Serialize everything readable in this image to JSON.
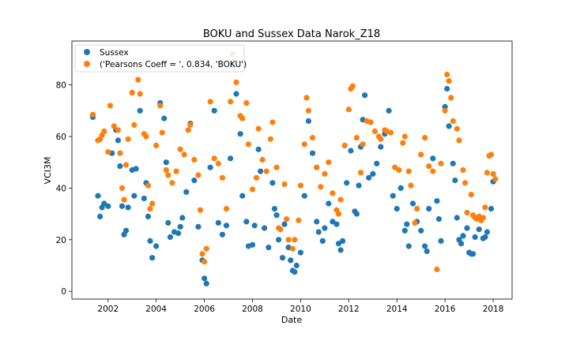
{
  "chart_data": {
    "type": "scatter",
    "title": "BOKU and Sussex Data Narok_Z18",
    "xlabel": "Date",
    "ylabel": "VCI3M",
    "xlim": [
      "2000-07-01",
      "2018-10-15"
    ],
    "ylim": [
      -3,
      97
    ],
    "x_ticks": [
      "2002",
      "2004",
      "2006",
      "2008",
      "2010",
      "2012",
      "2014",
      "2016",
      "2018"
    ],
    "y_ticks": [
      0,
      20,
      40,
      60,
      80
    ],
    "grid": false,
    "legend_placement": "top-left",
    "series": [
      {
        "name": "Sussex",
        "color": "#1f77b4",
        "points": [
          [
            "2001-05-15",
            67.5
          ],
          [
            "2001-08-01",
            37
          ],
          [
            "2001-09-01",
            29
          ],
          [
            "2001-10-01",
            32.5
          ],
          [
            "2001-11-01",
            34
          ],
          [
            "2002-01-01",
            33
          ],
          [
            "2002-03-01",
            53.5
          ],
          [
            "2002-05-01",
            62.5
          ],
          [
            "2002-06-01",
            58.5
          ],
          [
            "2002-07-01",
            48.5
          ],
          [
            "2002-08-01",
            33
          ],
          [
            "2002-09-01",
            22
          ],
          [
            "2002-10-01",
            23.5
          ],
          [
            "2002-11-01",
            32.5
          ],
          [
            "2003-01-01",
            47
          ],
          [
            "2003-02-01",
            37
          ],
          [
            "2003-03-01",
            47.5
          ],
          [
            "2003-05-01",
            70
          ],
          [
            "2003-07-01",
            36
          ],
          [
            "2003-08-01",
            42
          ],
          [
            "2003-09-01",
            29
          ],
          [
            "2003-10-01",
            19.5
          ],
          [
            "2003-11-01",
            13
          ],
          [
            "2004-01-01",
            17.5
          ],
          [
            "2004-03-01",
            73
          ],
          [
            "2004-05-01",
            67
          ],
          [
            "2004-06-01",
            50
          ],
          [
            "2004-07-01",
            26.5
          ],
          [
            "2004-08-01",
            21
          ],
          [
            "2004-10-01",
            23
          ],
          [
            "2004-12-01",
            22.5
          ],
          [
            "2005-01-01",
            25
          ],
          [
            "2005-02-01",
            28.5
          ],
          [
            "2005-04-01",
            38.5
          ],
          [
            "2005-06-01",
            65
          ],
          [
            "2005-08-01",
            43
          ],
          [
            "2005-10-01",
            25
          ],
          [
            "2005-12-01",
            12
          ],
          [
            "2006-01-01",
            5
          ],
          [
            "2006-02-01",
            3
          ],
          [
            "2006-04-01",
            48
          ],
          [
            "2006-06-01",
            70
          ],
          [
            "2006-08-01",
            26.5
          ],
          [
            "2006-10-01",
            22
          ],
          [
            "2006-12-01",
            25.5
          ],
          [
            "2007-02-01",
            51.5
          ],
          [
            "2007-03-01",
            87.5
          ],
          [
            "2007-05-01",
            76.5
          ],
          [
            "2007-07-01",
            61
          ],
          [
            "2007-08-01",
            37
          ],
          [
            "2007-10-01",
            27
          ],
          [
            "2007-11-01",
            17.5
          ],
          [
            "2008-01-01",
            18
          ],
          [
            "2008-02-01",
            25.5
          ],
          [
            "2008-04-01",
            55
          ],
          [
            "2008-05-01",
            46.5
          ],
          [
            "2008-07-01",
            24.5
          ],
          [
            "2008-09-01",
            17
          ],
          [
            "2008-11-01",
            42
          ],
          [
            "2008-12-01",
            32
          ],
          [
            "2009-01-01",
            29.5
          ],
          [
            "2009-02-01",
            20
          ],
          [
            "2009-04-01",
            13
          ],
          [
            "2009-05-01",
            26
          ],
          [
            "2009-07-01",
            17
          ],
          [
            "2009-08-01",
            12
          ],
          [
            "2009-09-01",
            8
          ],
          [
            "2009-10-01",
            7.5
          ],
          [
            "2009-11-01",
            10
          ],
          [
            "2010-01-01",
            15
          ],
          [
            "2010-03-01",
            37
          ],
          [
            "2010-05-01",
            66
          ],
          [
            "2010-07-01",
            53.5
          ],
          [
            "2010-09-01",
            27
          ],
          [
            "2010-10-01",
            23
          ],
          [
            "2010-12-01",
            19.5
          ],
          [
            "2011-01-01",
            24.5
          ],
          [
            "2011-03-01",
            34
          ],
          [
            "2011-05-01",
            27
          ],
          [
            "2011-07-01",
            26
          ],
          [
            "2011-08-01",
            18.5
          ],
          [
            "2011-09-01",
            16
          ],
          [
            "2011-10-01",
            19.5
          ],
          [
            "2011-12-01",
            42
          ],
          [
            "2012-02-01",
            54.5
          ],
          [
            "2012-04-01",
            31
          ],
          [
            "2012-05-01",
            30
          ],
          [
            "2012-06-01",
            41
          ],
          [
            "2012-07-01",
            56
          ],
          [
            "2012-08-01",
            66.5
          ],
          [
            "2012-09-01",
            76
          ],
          [
            "2012-11-01",
            44
          ],
          [
            "2013-01-01",
            45.5
          ],
          [
            "2013-03-01",
            49.5
          ],
          [
            "2013-05-01",
            56
          ],
          [
            "2013-07-01",
            61
          ],
          [
            "2013-09-01",
            70
          ],
          [
            "2013-11-01",
            37
          ],
          [
            "2014-01-01",
            32
          ],
          [
            "2014-03-01",
            40
          ],
          [
            "2014-05-01",
            23.5
          ],
          [
            "2014-06-01",
            26
          ],
          [
            "2014-07-01",
            17.5
          ],
          [
            "2014-09-01",
            34
          ],
          [
            "2014-11-01",
            27
          ],
          [
            "2015-01-01",
            23.5
          ],
          [
            "2015-03-01",
            17.5
          ],
          [
            "2015-04-01",
            15.5
          ],
          [
            "2015-05-01",
            32
          ],
          [
            "2015-07-01",
            51.5
          ],
          [
            "2015-09-01",
            35
          ],
          [
            "2015-10-01",
            28
          ],
          [
            "2015-11-01",
            19.5
          ],
          [
            "2016-01-01",
            71.5
          ],
          [
            "2016-02-01",
            78.5
          ],
          [
            "2016-03-01",
            64
          ],
          [
            "2016-05-01",
            49.5
          ],
          [
            "2016-06-01",
            43
          ],
          [
            "2016-07-01",
            28.5
          ],
          [
            "2016-08-01",
            20
          ],
          [
            "2016-09-01",
            18.5
          ],
          [
            "2016-10-01",
            21.5
          ],
          [
            "2016-12-01",
            24.5
          ],
          [
            "2017-01-01",
            15
          ],
          [
            "2017-02-01",
            14.5
          ],
          [
            "2017-03-01",
            14.5
          ],
          [
            "2017-04-01",
            21
          ],
          [
            "2017-06-01",
            24
          ],
          [
            "2017-08-01",
            20.5
          ],
          [
            "2017-09-01",
            21
          ],
          [
            "2017-10-01",
            23
          ],
          [
            "2017-12-01",
            32
          ],
          [
            "2018-01-01",
            42.5
          ]
        ]
      },
      {
        "name": "('Pearsons Coeff = ', 0.834, 'BOKU')",
        "color": "#ff7f0e",
        "points": [
          [
            "2001-05-15",
            68.5
          ],
          [
            "2001-08-01",
            58.5
          ],
          [
            "2001-09-01",
            59
          ],
          [
            "2001-10-01",
            60.5
          ],
          [
            "2001-11-01",
            62
          ],
          [
            "2002-01-01",
            54
          ],
          [
            "2002-02-01",
            72
          ],
          [
            "2002-04-01",
            64
          ],
          [
            "2002-06-01",
            62.5
          ],
          [
            "2002-07-01",
            53.5
          ],
          [
            "2002-08-01",
            40
          ],
          [
            "2002-09-01",
            35.5
          ],
          [
            "2002-10-01",
            49
          ],
          [
            "2002-11-01",
            59
          ],
          [
            "2003-01-01",
            77
          ],
          [
            "2003-02-01",
            64.5
          ],
          [
            "2003-04-01",
            82
          ],
          [
            "2003-05-01",
            76.5
          ],
          [
            "2003-07-01",
            61
          ],
          [
            "2003-08-01",
            60
          ],
          [
            "2003-09-01",
            41
          ],
          [
            "2003-10-01",
            32
          ],
          [
            "2003-11-01",
            34
          ],
          [
            "2004-01-01",
            56.5
          ],
          [
            "2004-03-01",
            72
          ],
          [
            "2004-04-01",
            61.5
          ],
          [
            "2004-06-01",
            47
          ],
          [
            "2004-07-01",
            45
          ],
          [
            "2004-09-01",
            42
          ],
          [
            "2004-11-01",
            46.5
          ],
          [
            "2005-01-01",
            55
          ],
          [
            "2005-03-01",
            53
          ],
          [
            "2005-05-01",
            62.5
          ],
          [
            "2005-06-01",
            64.5
          ],
          [
            "2005-08-01",
            51
          ],
          [
            "2005-10-01",
            45
          ],
          [
            "2005-11-01",
            31.5
          ],
          [
            "2005-12-01",
            14.5
          ],
          [
            "2006-01-01",
            11.5
          ],
          [
            "2006-02-01",
            16.5
          ],
          [
            "2006-04-01",
            73.5
          ],
          [
            "2006-06-01",
            51.5
          ],
          [
            "2006-08-01",
            49.5
          ],
          [
            "2006-10-01",
            44
          ],
          [
            "2006-12-01",
            32
          ],
          [
            "2007-02-01",
            73.5
          ],
          [
            "2007-03-01",
            92
          ],
          [
            "2007-05-01",
            81
          ],
          [
            "2007-07-01",
            68
          ],
          [
            "2007-08-01",
            67
          ],
          [
            "2007-10-01",
            73
          ],
          [
            "2007-11-01",
            57
          ],
          [
            "2008-01-01",
            39.5
          ],
          [
            "2008-03-01",
            44
          ],
          [
            "2008-04-01",
            63
          ],
          [
            "2008-06-01",
            51
          ],
          [
            "2008-08-01",
            46.5
          ],
          [
            "2008-10-01",
            59
          ],
          [
            "2008-11-01",
            65.5
          ],
          [
            "2009-01-01",
            48
          ],
          [
            "2009-02-01",
            24.5
          ],
          [
            "2009-03-01",
            24
          ],
          [
            "2009-05-01",
            41.5
          ],
          [
            "2009-06-01",
            28
          ],
          [
            "2009-07-01",
            20
          ],
          [
            "2009-09-01",
            16.5
          ],
          [
            "2009-10-01",
            20
          ],
          [
            "2009-12-01",
            27.5
          ],
          [
            "2010-01-01",
            41
          ],
          [
            "2010-03-01",
            57
          ],
          [
            "2010-04-01",
            75
          ],
          [
            "2010-05-01",
            70
          ],
          [
            "2010-07-01",
            59.5
          ],
          [
            "2010-09-01",
            48
          ],
          [
            "2010-11-01",
            40.5
          ],
          [
            "2011-01-01",
            45.5
          ],
          [
            "2011-03-01",
            50
          ],
          [
            "2011-05-01",
            38
          ],
          [
            "2011-07-01",
            31.5
          ],
          [
            "2011-08-01",
            30
          ],
          [
            "2011-09-01",
            35.5
          ],
          [
            "2011-11-01",
            56.5
          ],
          [
            "2012-01-01",
            70.5
          ],
          [
            "2012-02-01",
            78.5
          ],
          [
            "2012-03-01",
            79.5
          ],
          [
            "2012-05-01",
            59.5
          ],
          [
            "2012-07-01",
            46
          ],
          [
            "2012-08-01",
            57
          ],
          [
            "2012-10-01",
            66
          ],
          [
            "2012-12-01",
            65.5
          ],
          [
            "2013-02-01",
            62
          ],
          [
            "2013-04-01",
            60
          ],
          [
            "2013-05-01",
            59
          ],
          [
            "2013-07-01",
            62.5
          ],
          [
            "2013-08-01",
            62
          ],
          [
            "2013-10-01",
            61.5
          ],
          [
            "2013-12-01",
            48
          ],
          [
            "2014-02-01",
            47
          ],
          [
            "2014-04-01",
            57.5
          ],
          [
            "2014-05-01",
            60
          ],
          [
            "2014-07-01",
            46.5
          ],
          [
            "2014-08-01",
            41
          ],
          [
            "2014-10-01",
            26.5
          ],
          [
            "2014-11-01",
            32
          ],
          [
            "2015-01-01",
            53
          ],
          [
            "2015-03-01",
            59.5
          ],
          [
            "2015-05-01",
            48.5
          ],
          [
            "2015-07-01",
            46.5
          ],
          [
            "2015-09-01",
            8.5
          ],
          [
            "2015-11-01",
            49.5
          ],
          [
            "2016-01-01",
            70
          ],
          [
            "2016-02-01",
            84
          ],
          [
            "2016-03-01",
            81.5
          ],
          [
            "2016-04-01",
            75
          ],
          [
            "2016-05-01",
            66
          ],
          [
            "2016-07-01",
            63
          ],
          [
            "2016-08-01",
            58.5
          ],
          [
            "2016-10-01",
            47
          ],
          [
            "2016-11-01",
            42
          ],
          [
            "2016-12-01",
            30.5
          ],
          [
            "2017-02-01",
            37.5
          ],
          [
            "2017-03-01",
            29.5
          ],
          [
            "2017-04-01",
            28.5
          ],
          [
            "2017-05-01",
            28
          ],
          [
            "2017-06-01",
            29
          ],
          [
            "2017-07-01",
            27.5
          ],
          [
            "2017-08-01",
            28.5
          ],
          [
            "2017-09-01",
            32.5
          ],
          [
            "2017-10-01",
            46
          ],
          [
            "2017-11-01",
            52.5
          ],
          [
            "2017-12-01",
            53
          ],
          [
            "2018-01-01",
            45.5
          ],
          [
            "2018-02-01",
            43.5
          ]
        ]
      }
    ]
  }
}
